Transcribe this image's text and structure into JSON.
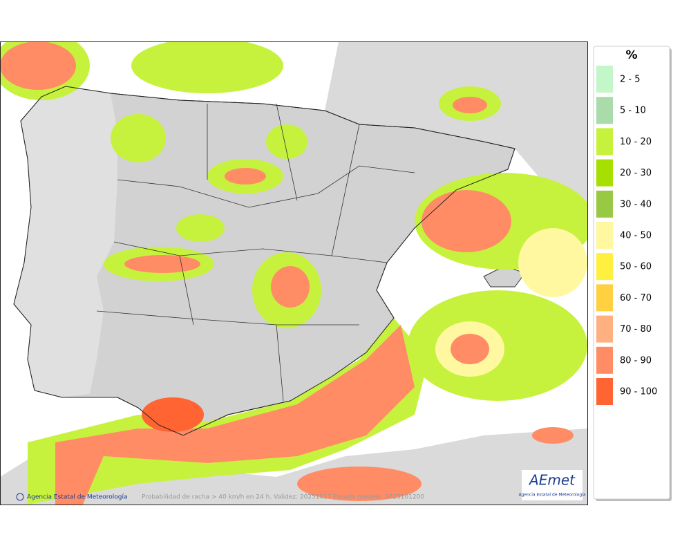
{
  "legend": {
    "title": "%",
    "items": [
      {
        "label": "2 - 5",
        "color": "#c3f7c9"
      },
      {
        "label": "5 - 10",
        "color": "#a9dcaa"
      },
      {
        "label": "10 - 20",
        "color": "#c6f23e"
      },
      {
        "label": "20 - 30",
        "color": "#a6e000"
      },
      {
        "label": "30 - 40",
        "color": "#98c844"
      },
      {
        "label": "40 - 50",
        "color": "#fff8a0"
      },
      {
        "label": "50 - 60",
        "color": "#fff040"
      },
      {
        "label": "60 - 70",
        "color": "#ffd040"
      },
      {
        "label": "70 - 80",
        "color": "#ffb080"
      },
      {
        "label": "80 - 90",
        "color": "#ff8c64"
      },
      {
        "label": "90 - 100",
        "color": "#ff6432"
      }
    ]
  },
  "footer": {
    "credit": "Agencia Estatal de Meteorología",
    "caption": "Probabilidad de racha > 40 km/h en 24 h. Validez: 20251017 Pasada modelo: 2025101200"
  },
  "logo": {
    "name": "AEmet",
    "subtitle": "Agencia Estatal de Meteorología"
  }
}
